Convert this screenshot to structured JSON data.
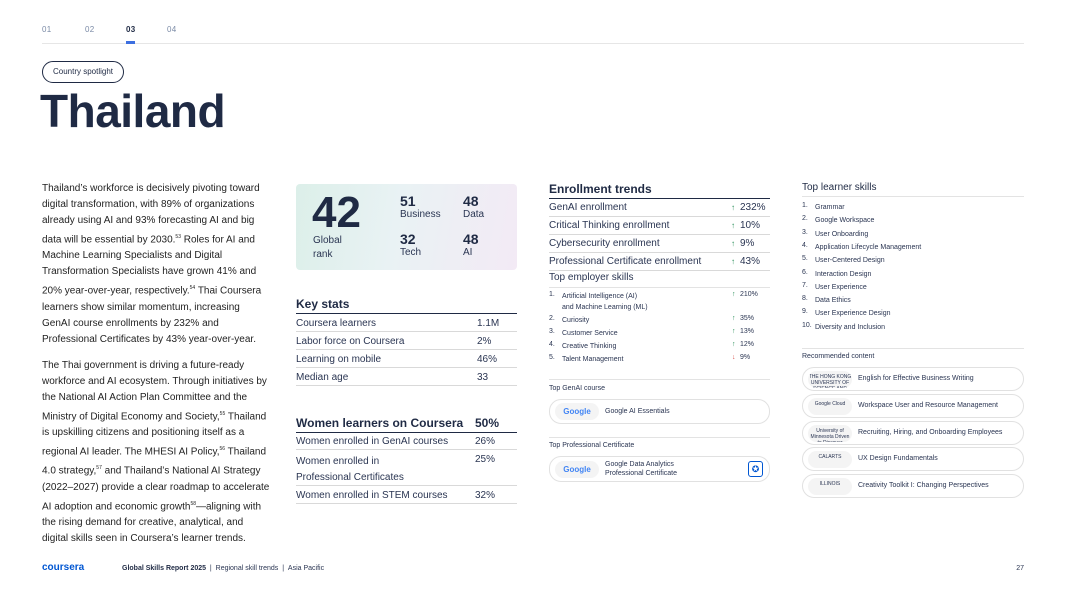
{
  "nav": {
    "tabs": [
      "01",
      "02",
      "03",
      "04"
    ],
    "active_index": 2
  },
  "spotlight_label": "Country spotlight",
  "country": "Thailand",
  "body": {
    "p1": "Thailand’s workforce is decisively pivoting toward digital transformation, with 89% of organizations already using AI and 93% forecasting AI and big data will be essential by 2030.",
    "p1_sup1": "53",
    "p1b": " Roles for AI and Machine Learning Specialists and Digital Transformation Specialists have grown 41% and 20% year-over-year, respectively.",
    "p1_sup2": "54",
    "p1c": " Thai Coursera learners show similar momentum, increasing GenAI course enrollments by 232% and Professional Certificates by 43% year-over-year.",
    "p2a": "The Thai government is driving a future-ready workforce and AI ecosystem. Through initiatives by the National AI Action Plan Committee and the Ministry of Digital Economy and Society,",
    "p2_sup1": "55",
    "p2b": " Thailand is upskilling citizens and positioning itself as a regional AI leader. The MHESI AI Policy,",
    "p2_sup2": "56",
    "p2c": " Thailand 4.0 strategy,",
    "p2_sup3": "57",
    "p2d": " and Thailand’s National AI Strategy (2022–2027) provide a clear roadmap to accelerate AI adoption and economic growth",
    "p2_sup4": "58",
    "p2e": "—aligning with the rising demand for creative, analytical, and digital skills seen in Coursera’s learner trends."
  },
  "rank": {
    "global": "42",
    "global_label": "Global rank",
    "cells": [
      {
        "value": "51",
        "label": "Business"
      },
      {
        "value": "48",
        "label": "Data"
      },
      {
        "value": "32",
        "label": "Tech"
      },
      {
        "value": "48",
        "label": "AI"
      }
    ]
  },
  "key_stats": {
    "title": "Key stats",
    "rows": [
      {
        "k": "Coursera learners",
        "v": "1.1M"
      },
      {
        "k": "Labor force on Coursera",
        "v": "2%"
      },
      {
        "k": "Learning on mobile",
        "v": "46%"
      },
      {
        "k": "Median age",
        "v": "33"
      }
    ]
  },
  "women": {
    "title": "Women learners on Coursera",
    "title_value": "50%",
    "rows": [
      {
        "k": "Women enrolled in GenAI courses",
        "v": "26%"
      },
      {
        "k1": "Women enrolled in",
        "k2": "Professional Certificates",
        "v": "25%"
      },
      {
        "k": "Women enrolled in STEM courses",
        "v": "32%"
      }
    ]
  },
  "enrollment": {
    "title": "Enrollment trends",
    "rows": [
      {
        "k": "GenAI enrollment",
        "v": "232%"
      },
      {
        "k": "Critical Thinking enrollment",
        "v": "10%"
      },
      {
        "k": "Cybersecurity enrollment",
        "v": "9%"
      },
      {
        "k": "Professional Certificate enrollment",
        "v": "43%"
      }
    ]
  },
  "employer": {
    "title": "Top employer skills",
    "items": [
      {
        "n": "1.",
        "t1": "Artificial Intelligence (AI)",
        "t2": "and Machine Learning (ML)",
        "v": "210%",
        "dir": "up"
      },
      {
        "n": "2.",
        "t1": "Curiosity",
        "v": "35%",
        "dir": "up"
      },
      {
        "n": "3.",
        "t1": "Customer Service",
        "v": "13%",
        "dir": "up"
      },
      {
        "n": "4.",
        "t1": "Creative Thinking",
        "v": "12%",
        "dir": "up"
      },
      {
        "n": "5.",
        "t1": "Talent Management",
        "v": "9%",
        "dir": "down"
      }
    ]
  },
  "genai_course": {
    "heading": "Top GenAI course",
    "logo": "Google",
    "name": "Google AI Essentials"
  },
  "prof_cert": {
    "heading": "Top Professional Certificate",
    "logo": "Google",
    "name1": "Google Data Analytics",
    "name2": "Professional Certificate"
  },
  "learner_skills": {
    "title": "Top learner skills",
    "items": [
      "Grammar",
      "Google Workspace",
      "User Onboarding",
      "Application Lifecycle Management",
      "User-Centered Design",
      "Interaction Design",
      "User Experience",
      "Data Ethics",
      "User Experience Design",
      "Diversity and Inclusion"
    ]
  },
  "recommended": {
    "title": "Recommended content",
    "items": [
      {
        "logo": "THE HONG KONG UNIVERSITY OF SCIENCE AND TECHNOLOGY",
        "name": "English for Effective Business Writing"
      },
      {
        "logo": "Google Cloud",
        "name": "Workspace User and Resource Management"
      },
      {
        "logo": "University of Minnesota Driven to Discover",
        "name": "Recruiting, Hiring, and Onboarding Employees"
      },
      {
        "logo": "CALARTS",
        "name": "UX Design Fundamentals"
      },
      {
        "logo": "ILLINOIS",
        "name": "Creativity Toolkit I: Changing Perspectives"
      }
    ]
  },
  "footer": {
    "brand": "coursera",
    "report": "Global Skills Report 2025",
    "sep": "|",
    "section": "Regional skill trends",
    "region": "Asia Pacific",
    "page": "27"
  },
  "colors": {
    "navy": "#1f2a44",
    "accent": "#3c6fe0",
    "brand": "#0056d2",
    "up": "#2a8f5a",
    "down": "#d9534f"
  }
}
